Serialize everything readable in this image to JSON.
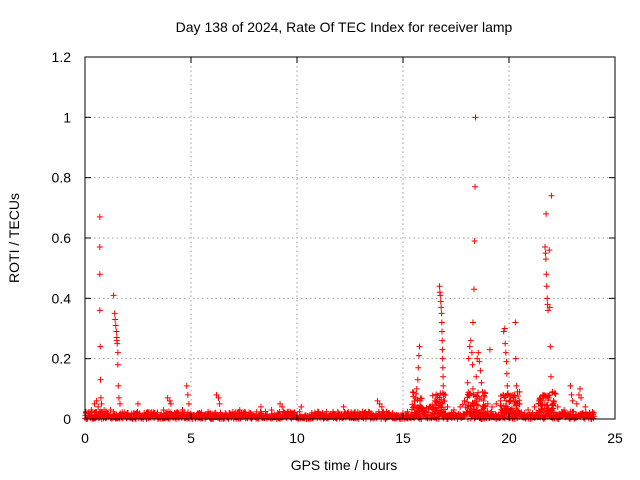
{
  "chart_data": {
    "type": "scatter",
    "title": "Day 138 of 2024, Rate Of TEC Index for receiver lamp",
    "xlabel": "GPS time / hours",
    "ylabel": "ROTI / TECUs",
    "xlim": [
      0,
      25
    ],
    "ylim": [
      0,
      1.2
    ],
    "xticks": [
      0,
      5,
      10,
      15,
      20,
      25
    ],
    "xtick_labels": [
      "0",
      "5",
      "10",
      "15",
      "20",
      "25"
    ],
    "yticks": [
      0,
      0.2,
      0.4,
      0.6,
      0.8,
      1.0,
      1.2
    ],
    "ytick_labels": [
      "0",
      "0.2",
      "0.4",
      "0.6",
      "0.8",
      "1",
      "1.2"
    ],
    "grid": true,
    "marker": "+",
    "color": "#ff0000",
    "series": [
      {
        "name": "ROTI",
        "points": [
          [
            0.05,
            0.02
          ],
          [
            0.15,
            0.01
          ],
          [
            0.3,
            0.03
          ],
          [
            0.45,
            0.05
          ],
          [
            0.55,
            0.06
          ],
          [
            0.62,
            0.04
          ],
          [
            0.7,
            0.67
          ],
          [
            0.7,
            0.57
          ],
          [
            0.7,
            0.48
          ],
          [
            0.7,
            0.36
          ],
          [
            0.72,
            0.24
          ],
          [
            0.73,
            0.13
          ],
          [
            0.75,
            0.07
          ],
          [
            0.78,
            0.05
          ],
          [
            0.9,
            0.03
          ],
          [
            1.05,
            0.02
          ],
          [
            1.2,
            0.03
          ],
          [
            1.35,
            0.41
          ],
          [
            1.4,
            0.35
          ],
          [
            1.42,
            0.33
          ],
          [
            1.45,
            0.31
          ],
          [
            1.48,
            0.29
          ],
          [
            1.5,
            0.27
          ],
          [
            1.5,
            0.26
          ],
          [
            1.52,
            0.25
          ],
          [
            1.55,
            0.22
          ],
          [
            1.55,
            0.18
          ],
          [
            1.57,
            0.11
          ],
          [
            1.6,
            0.07
          ],
          [
            1.65,
            0.05
          ],
          [
            2.0,
            0.02
          ],
          [
            2.3,
            0.02
          ],
          [
            2.5,
            0.05
          ],
          [
            2.9,
            0.02
          ],
          [
            3.3,
            0.02
          ],
          [
            3.7,
            0.03
          ],
          [
            3.9,
            0.07
          ],
          [
            4.0,
            0.06
          ],
          [
            4.05,
            0.05
          ],
          [
            4.4,
            0.02
          ],
          [
            4.6,
            0.03
          ],
          [
            4.8,
            0.11
          ],
          [
            4.85,
            0.08
          ],
          [
            4.9,
            0.05
          ],
          [
            5.4,
            0.02
          ],
          [
            5.9,
            0.02
          ],
          [
            6.2,
            0.08
          ],
          [
            6.3,
            0.07
          ],
          [
            6.35,
            0.05
          ],
          [
            6.8,
            0.02
          ],
          [
            7.3,
            0.03
          ],
          [
            7.8,
            0.02
          ],
          [
            8.3,
            0.04
          ],
          [
            8.8,
            0.03
          ],
          [
            9.2,
            0.05
          ],
          [
            9.3,
            0.04
          ],
          [
            9.7,
            0.02
          ],
          [
            10.2,
            0.04
          ],
          [
            10.7,
            0.02
          ],
          [
            11.2,
            0.02
          ],
          [
            11.7,
            0.02
          ],
          [
            12.2,
            0.04
          ],
          [
            12.7,
            0.02
          ],
          [
            13.2,
            0.02
          ],
          [
            13.8,
            0.06
          ],
          [
            13.9,
            0.05
          ],
          [
            14.0,
            0.04
          ],
          [
            14.5,
            0.02
          ],
          [
            15.0,
            0.02
          ],
          [
            15.5,
            0.04
          ],
          [
            15.6,
            0.07
          ],
          [
            15.65,
            0.1
          ],
          [
            15.7,
            0.13
          ],
          [
            15.72,
            0.17
          ],
          [
            15.75,
            0.21
          ],
          [
            15.78,
            0.24
          ],
          [
            15.8,
            0.06
          ],
          [
            16.0,
            0.03
          ],
          [
            16.3,
            0.04
          ],
          [
            16.5,
            0.06
          ],
          [
            16.72,
            0.44
          ],
          [
            16.74,
            0.42
          ],
          [
            16.76,
            0.41
          ],
          [
            16.78,
            0.39
          ],
          [
            16.8,
            0.37
          ],
          [
            16.82,
            0.35
          ],
          [
            16.83,
            0.32
          ],
          [
            16.84,
            0.29
          ],
          [
            16.85,
            0.26
          ],
          [
            16.86,
            0.23
          ],
          [
            16.87,
            0.2
          ],
          [
            16.88,
            0.17
          ],
          [
            16.89,
            0.14
          ],
          [
            16.9,
            0.11
          ],
          [
            16.91,
            0.08
          ],
          [
            16.92,
            0.06
          ],
          [
            17.1,
            0.04
          ],
          [
            17.4,
            0.03
          ],
          [
            17.7,
            0.04
          ],
          [
            17.9,
            0.06
          ],
          [
            18.05,
            0.12
          ],
          [
            18.1,
            0.2
          ],
          [
            18.15,
            0.24
          ],
          [
            18.2,
            0.26
          ],
          [
            18.25,
            0.22
          ],
          [
            18.28,
            0.18
          ],
          [
            18.3,
            0.32
          ],
          [
            18.35,
            0.43
          ],
          [
            18.38,
            0.59
          ],
          [
            18.4,
            0.77
          ],
          [
            18.42,
            1.0
          ],
          [
            18.45,
            0.14
          ],
          [
            18.5,
            0.2
          ],
          [
            18.55,
            0.22
          ],
          [
            18.6,
            0.19
          ],
          [
            18.65,
            0.16
          ],
          [
            18.7,
            0.12
          ],
          [
            18.75,
            0.09
          ],
          [
            18.8,
            0.06
          ],
          [
            18.85,
            0.04
          ],
          [
            18.3,
            0.1
          ],
          [
            18.35,
            0.08
          ],
          [
            18.4,
            0.06
          ],
          [
            19.1,
            0.23
          ],
          [
            19.0,
            0.05
          ],
          [
            19.2,
            0.04
          ],
          [
            19.4,
            0.05
          ],
          [
            19.6,
            0.06
          ],
          [
            19.75,
            0.29
          ],
          [
            19.8,
            0.3
          ],
          [
            19.82,
            0.25
          ],
          [
            19.85,
            0.22
          ],
          [
            19.88,
            0.19
          ],
          [
            19.9,
            0.15
          ],
          [
            19.92,
            0.11
          ],
          [
            19.95,
            0.08
          ],
          [
            20.05,
            0.06
          ],
          [
            20.2,
            0.07
          ],
          [
            20.3,
            0.32
          ],
          [
            20.32,
            0.2
          ],
          [
            20.35,
            0.11
          ],
          [
            20.4,
            0.09
          ],
          [
            20.5,
            0.05
          ],
          [
            20.9,
            0.03
          ],
          [
            21.2,
            0.04
          ],
          [
            21.4,
            0.05
          ],
          [
            21.6,
            0.08
          ],
          [
            21.7,
            0.57
          ],
          [
            21.72,
            0.55
          ],
          [
            21.74,
            0.53
          ],
          [
            21.76,
            0.48
          ],
          [
            21.78,
            0.44
          ],
          [
            21.8,
            0.4
          ],
          [
            21.82,
            0.38
          ],
          [
            21.84,
            0.36
          ],
          [
            21.75,
            0.68
          ],
          [
            21.9,
            0.56
          ],
          [
            21.92,
            0.37
          ],
          [
            21.95,
            0.24
          ],
          [
            21.98,
            0.14
          ],
          [
            22.0,
            0.74
          ],
          [
            22.05,
            0.09
          ],
          [
            22.1,
            0.06
          ],
          [
            22.3,
            0.04
          ],
          [
            22.6,
            0.03
          ],
          [
            22.9,
            0.11
          ],
          [
            22.95,
            0.08
          ],
          [
            23.0,
            0.06
          ],
          [
            23.2,
            0.05
          ],
          [
            23.3,
            0.08
          ],
          [
            23.35,
            0.1
          ],
          [
            23.4,
            0.07
          ],
          [
            23.6,
            0.04
          ],
          [
            23.8,
            0.02
          ],
          [
            24.0,
            0.02
          ]
        ]
      }
    ]
  }
}
